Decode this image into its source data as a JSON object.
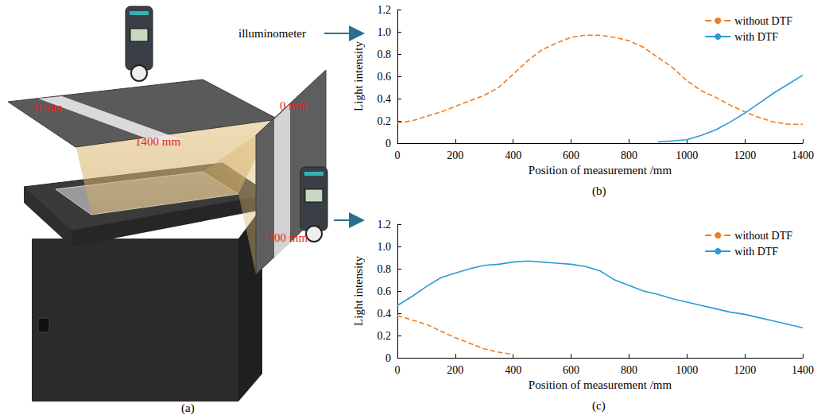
{
  "panel_a": {
    "title": "(a)",
    "device_label": "illuminometer",
    "top_screen": {
      "start": "0 mm",
      "end": "1400 mm"
    },
    "side_screen": {
      "start": "0 mm",
      "end": "1400 mm"
    }
  },
  "chart_data": [
    {
      "type": "line",
      "title": "(b)",
      "x_label": "Position of measurement /mm",
      "y_label": "Light intensity",
      "x": [
        0,
        50,
        100,
        150,
        200,
        250,
        300,
        350,
        400,
        450,
        500,
        550,
        600,
        650,
        700,
        750,
        800,
        850,
        900,
        950,
        1000,
        1050,
        1100,
        1150,
        1200,
        1250,
        1300,
        1350,
        1400
      ],
      "series": [
        {
          "name": "without DTF",
          "color": "#ef7d22",
          "line_style": "dashed",
          "values": [
            0.18,
            0.2,
            0.24,
            0.28,
            0.33,
            0.38,
            0.43,
            0.5,
            0.62,
            0.74,
            0.84,
            0.9,
            0.95,
            0.97,
            0.97,
            0.95,
            0.92,
            0.86,
            0.77,
            0.68,
            0.56,
            0.47,
            0.41,
            0.34,
            0.28,
            0.23,
            0.19,
            0.17,
            0.17
          ]
        },
        {
          "name": "with DTF",
          "color": "#2b9bd6",
          "line_style": "solid",
          "values": [
            null,
            null,
            null,
            null,
            null,
            null,
            null,
            null,
            null,
            null,
            null,
            null,
            null,
            null,
            null,
            null,
            null,
            null,
            0.01,
            0.02,
            0.03,
            0.07,
            0.12,
            0.19,
            0.27,
            0.36,
            0.45,
            0.53,
            0.61
          ]
        }
      ],
      "xlim": [
        0,
        1400
      ],
      "xticks": [
        0,
        200,
        400,
        600,
        800,
        1000,
        1200,
        1400
      ],
      "ylim": [
        0,
        1.2
      ],
      "yticks": [
        0,
        0.2,
        0.4,
        0.6,
        0.8,
        {
          "value": 1,
          "label": "1.0"
        },
        1.2
      ],
      "grid": false,
      "legend": "upper right"
    },
    {
      "type": "line",
      "title": "(c)",
      "x_label": "Position of measurement /mm",
      "y_label": "Light intensity",
      "x": [
        0,
        50,
        100,
        150,
        200,
        250,
        300,
        350,
        400,
        450,
        500,
        550,
        600,
        650,
        700,
        750,
        800,
        850,
        900,
        950,
        1000,
        1050,
        1100,
        1150,
        1200,
        1250,
        1300,
        1350,
        1400
      ],
      "series": [
        {
          "name": "without DTF",
          "color": "#ef7d22",
          "line_style": "dashed",
          "values": [
            0.38,
            0.34,
            0.3,
            0.24,
            0.18,
            0.13,
            0.08,
            0.05,
            0.03,
            null,
            null,
            null,
            null,
            null,
            null,
            null,
            null,
            null,
            null,
            null,
            null,
            null,
            null,
            null,
            null,
            null,
            null,
            null,
            null
          ]
        },
        {
          "name": "with DTF",
          "color": "#2b9bd6",
          "line_style": "solid",
          "values": [
            0.47,
            0.55,
            0.64,
            0.72,
            0.76,
            0.8,
            0.83,
            0.84,
            0.86,
            0.87,
            0.86,
            0.85,
            0.84,
            0.82,
            0.78,
            0.7,
            0.65,
            0.6,
            0.57,
            0.53,
            0.5,
            0.47,
            0.44,
            0.41,
            0.39,
            0.36,
            0.33,
            0.3,
            0.27
          ]
        }
      ],
      "xlim": [
        0,
        1400
      ],
      "xticks": [
        0,
        200,
        400,
        600,
        800,
        1000,
        1200,
        1400
      ],
      "ylim": [
        0,
        1.2
      ],
      "yticks": [
        0,
        0.2,
        0.4,
        0.6,
        0.8,
        {
          "value": 1,
          "label": "1.0"
        },
        1.2
      ],
      "grid": false,
      "legend": "upper right"
    }
  ]
}
